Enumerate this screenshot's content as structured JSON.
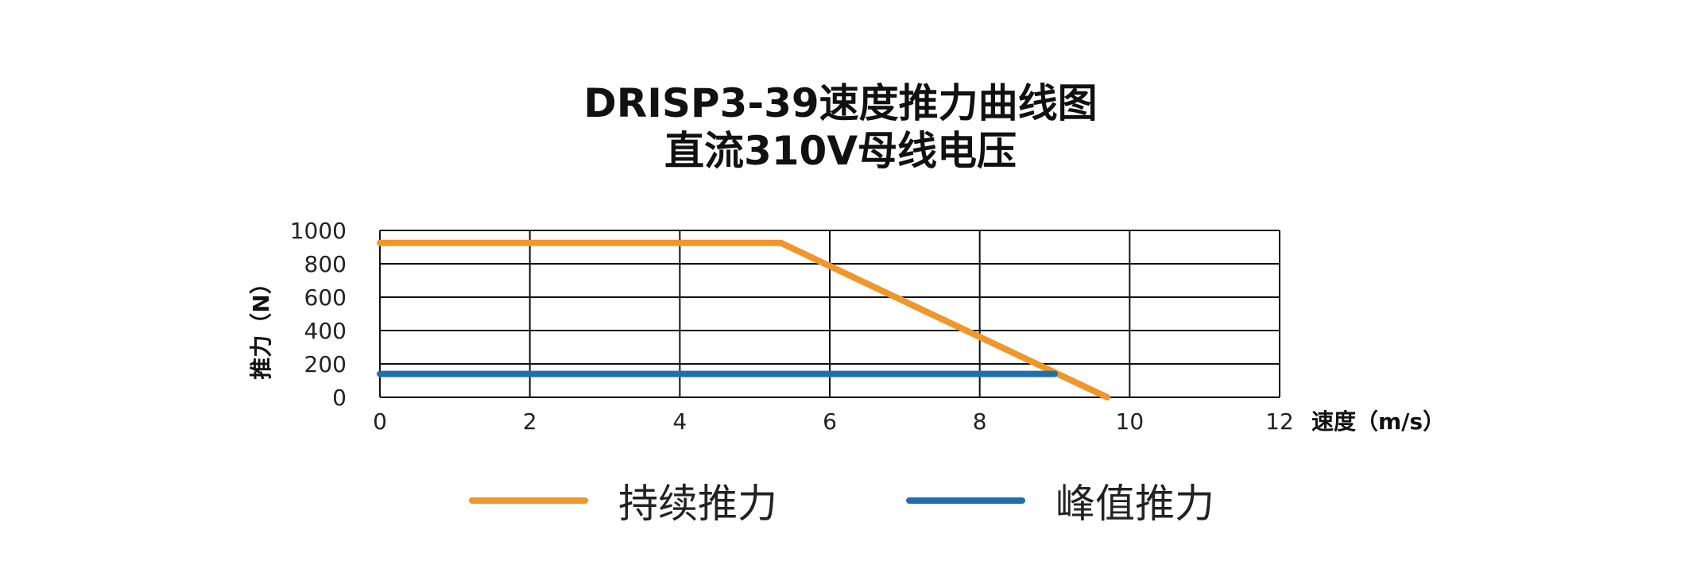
{
  "title_line1": "DRISP3-39速度推力曲线图",
  "title_line2": "直流310V母线电压",
  "chart_data": {
    "type": "line",
    "xlabel": "速度（m/s）",
    "ylabel": "推力（N）",
    "xlim": [
      0,
      12
    ],
    "ylim": [
      0,
      1000
    ],
    "x_ticks": [
      0,
      2,
      4,
      6,
      8,
      10,
      12
    ],
    "y_ticks": [
      0,
      200,
      400,
      600,
      800,
      1000
    ],
    "y_gridlines": [
      0,
      200,
      400,
      600,
      800,
      1000
    ],
    "grid": true,
    "legend_position": "bottom",
    "series": [
      {
        "name": "持续推力",
        "color": "#F0962A",
        "points": [
          [
            0,
            925
          ],
          [
            5.35,
            925
          ],
          [
            9.7,
            0
          ]
        ]
      },
      {
        "name": "峰值推力",
        "color": "#1E6FB0",
        "points": [
          [
            0,
            140
          ],
          [
            9.0,
            140
          ]
        ]
      }
    ]
  }
}
